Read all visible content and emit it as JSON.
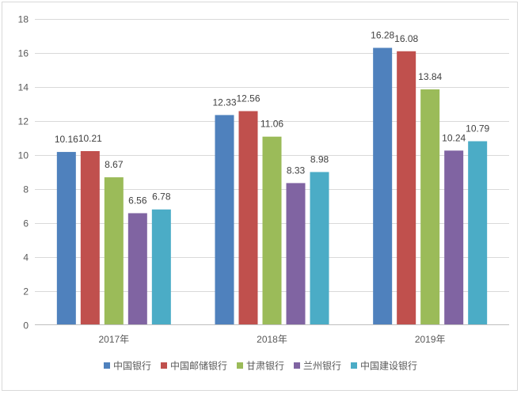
{
  "chart_data": {
    "type": "bar",
    "categories": [
      "2017年",
      "2018年",
      "2019年"
    ],
    "series": [
      {
        "name": "中国银行",
        "values": [
          10.16,
          12.33,
          16.28
        ],
        "color": "#4f81bd"
      },
      {
        "name": "中国邮储银行",
        "values": [
          10.21,
          12.56,
          16.08
        ],
        "color": "#c0504d"
      },
      {
        "name": "甘肃银行",
        "values": [
          8.67,
          11.06,
          13.84
        ],
        "color": "#9bbb59"
      },
      {
        "name": "兰州银行",
        "values": [
          6.56,
          8.33,
          10.24
        ],
        "color": "#8064a2"
      },
      {
        "name": "中国建设银行",
        "values": [
          6.78,
          8.98,
          10.79
        ],
        "color": "#4bacc6"
      }
    ],
    "data_labels": [
      [
        "10.16",
        "12.33",
        "16.28"
      ],
      [
        "10.21",
        "12.56",
        "16.08"
      ],
      [
        "8.67",
        "11.06",
        "13.84"
      ],
      [
        "6.56",
        "8.33",
        "10.24"
      ],
      [
        "6.78",
        "8.98",
        "10.79"
      ]
    ],
    "yticks": [
      "0",
      "2",
      "4",
      "6",
      "8",
      "10",
      "12",
      "14",
      "16",
      "18"
    ],
    "ylim": [
      0,
      18
    ],
    "grid": true,
    "legend_position": "bottom",
    "axis_color": "#bfbfbf",
    "grid_color": "#d9d9d9"
  }
}
